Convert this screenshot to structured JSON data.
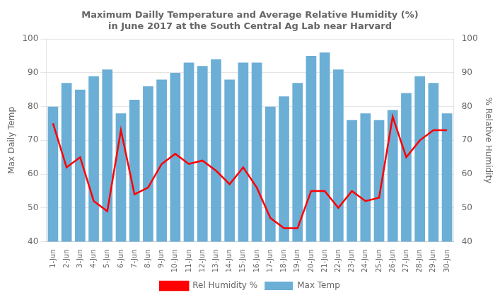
{
  "chart_data": {
    "type": "bar",
    "title": "Maximum Dailly Temperature and Average Relative Humidity (%)\nin June 2017 at the South Central Ag Lab near Harvard",
    "ylabel": "Max Daily Temp",
    "y2label": "% Relative Humidity",
    "categories": [
      "1-Jun",
      "2-Jun",
      "3-Jun",
      "4-Jun",
      "5-Jun",
      "6-Jun",
      "7-Jun",
      "8-Jun",
      "9-Jun",
      "10-Jun",
      "11-Jun",
      "12-Jun",
      "13-Jun",
      "14-Jun",
      "15-Jun",
      "16-Jun",
      "17-Jun",
      "18-Jun",
      "19-Jun",
      "20-Jun",
      "21-Jun",
      "22-Jun",
      "23-Jun",
      "24-Jun",
      "25-Jun",
      "26-Jun",
      "27-Jun",
      "28-Jun",
      "29-Jun",
      "30-Jun"
    ],
    "series": [
      {
        "name": "Max Temp",
        "type": "bar",
        "color": "#6BAED6",
        "values": [
          80,
          87,
          85,
          89,
          91,
          78,
          82,
          86,
          88,
          90,
          93,
          92,
          94,
          88,
          93,
          93,
          80,
          83,
          87,
          95,
          96,
          91,
          76,
          78,
          76,
          79,
          84,
          89,
          87,
          78
        ]
      },
      {
        "name": "Rel Humidity %",
        "type": "line",
        "color": "#FF0000",
        "axis": "y2",
        "values": [
          75,
          62,
          65,
          52,
          49,
          73,
          54,
          56,
          63,
          66,
          63,
          64,
          61,
          57,
          62,
          56,
          47,
          44,
          44,
          55,
          55,
          50,
          55,
          52,
          53,
          77,
          65,
          70,
          73,
          73
        ]
      }
    ],
    "ylim": [
      40,
      100
    ],
    "yticks": [
      40,
      50,
      60,
      70,
      80,
      90,
      100
    ],
    "y2lim": [
      40,
      100
    ],
    "y2ticks": [
      40,
      50,
      60,
      70,
      80,
      90,
      100
    ],
    "grid": true,
    "legend": "bottom"
  }
}
